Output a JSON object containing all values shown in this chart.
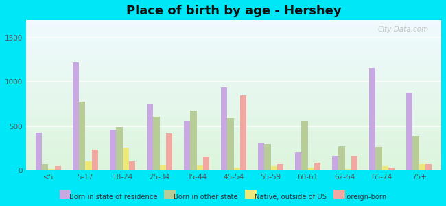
{
  "title": "Place of birth by age - Hershey",
  "categories": [
    "<5",
    "5-17",
    "18-24",
    "25-34",
    "35-44",
    "45-54",
    "55-59",
    "60-61",
    "62-64",
    "65-74",
    "75+"
  ],
  "series": {
    "Born in state of residence": [
      430,
      1220,
      460,
      750,
      560,
      940,
      310,
      200,
      165,
      1160,
      880
    ],
    "Born in other state": [
      75,
      775,
      490,
      610,
      680,
      590,
      300,
      560,
      270,
      265,
      390
    ],
    "Native, outside of US": [
      20,
      105,
      255,
      65,
      55,
      30,
      45,
      30,
      20,
      45,
      75
    ],
    "Foreign-born": [
      50,
      235,
      105,
      420,
      160,
      850,
      75,
      90,
      165,
      30,
      75
    ]
  },
  "colors": {
    "Born in state of residence": "#c8a8e0",
    "Born in other state": "#b8cc98",
    "Native, outside of US": "#ede87a",
    "Foreign-born": "#f0a8a0"
  },
  "ylim": [
    0,
    1700
  ],
  "yticks": [
    0,
    500,
    1000,
    1500
  ],
  "outer_bg": "#00e8f8",
  "title_fontsize": 13,
  "watermark": "City-Data.com"
}
